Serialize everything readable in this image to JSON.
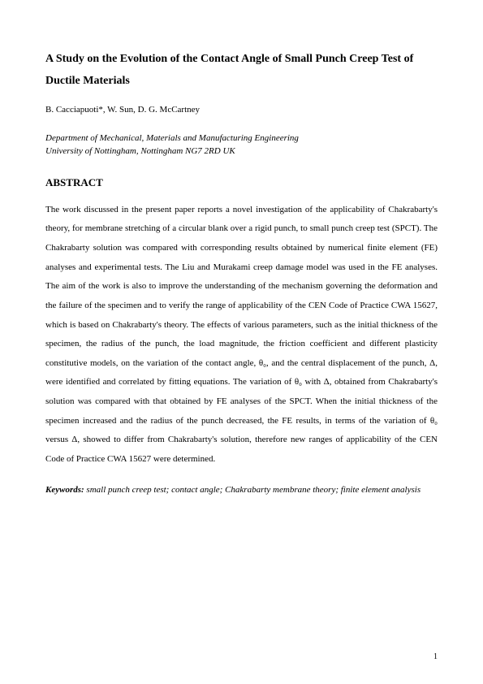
{
  "title": "A Study on the Evolution of the Contact Angle of Small Punch Creep Test of Ductile Materials",
  "authors": "B. Cacciapuoti*, W. Sun, D. G. McCartney",
  "affiliation_line1": "Department of Mechanical, Materials and Manufacturing Engineering",
  "affiliation_line2": "University of Nottingham, Nottingham NG7 2RD UK",
  "abstract_heading": "ABSTRACT",
  "abstract_body": "The work discussed in the present paper reports a novel investigation of the applicability of Chakrabarty's theory, for membrane stretching of a circular blank over a rigid punch, to small punch creep test (SPCT). The Chakrabarty solution was compared with corresponding results obtained by numerical finite element (FE) analyses and experimental tests. The Liu and Murakami creep damage model was used in the FE analyses. The aim of the work is also to improve the understanding of the mechanism governing the deformation and the failure of the specimen and to verify the range of applicability of the CEN Code of Practice CWA 15627, which is based on Chakrabarty's theory. The effects of various parameters, such as the initial thickness of the specimen, the radius of the punch, the load magnitude, the friction coefficient and different plasticity constitutive models, on the variation of the contact angle, θ₀, and the central displacement of the punch, Δ, were identified and correlated by fitting equations. The variation of θ₀ with Δ, obtained from Chakrabarty's solution was compared with that obtained by FE analyses of the SPCT. When the initial thickness of the specimen increased and the radius of the punch decreased, the FE results, in terms of the variation of θ₀ versus Δ, showed to differ from Chakrabarty's solution, therefore new ranges of applicability of the CEN Code of Practice CWA 15627 were determined.",
  "keywords_label": "Keywords:",
  "keywords_text": " small punch creep test; contact angle; Chakrabarty membrane theory; finite element analysis",
  "page_number": "1"
}
